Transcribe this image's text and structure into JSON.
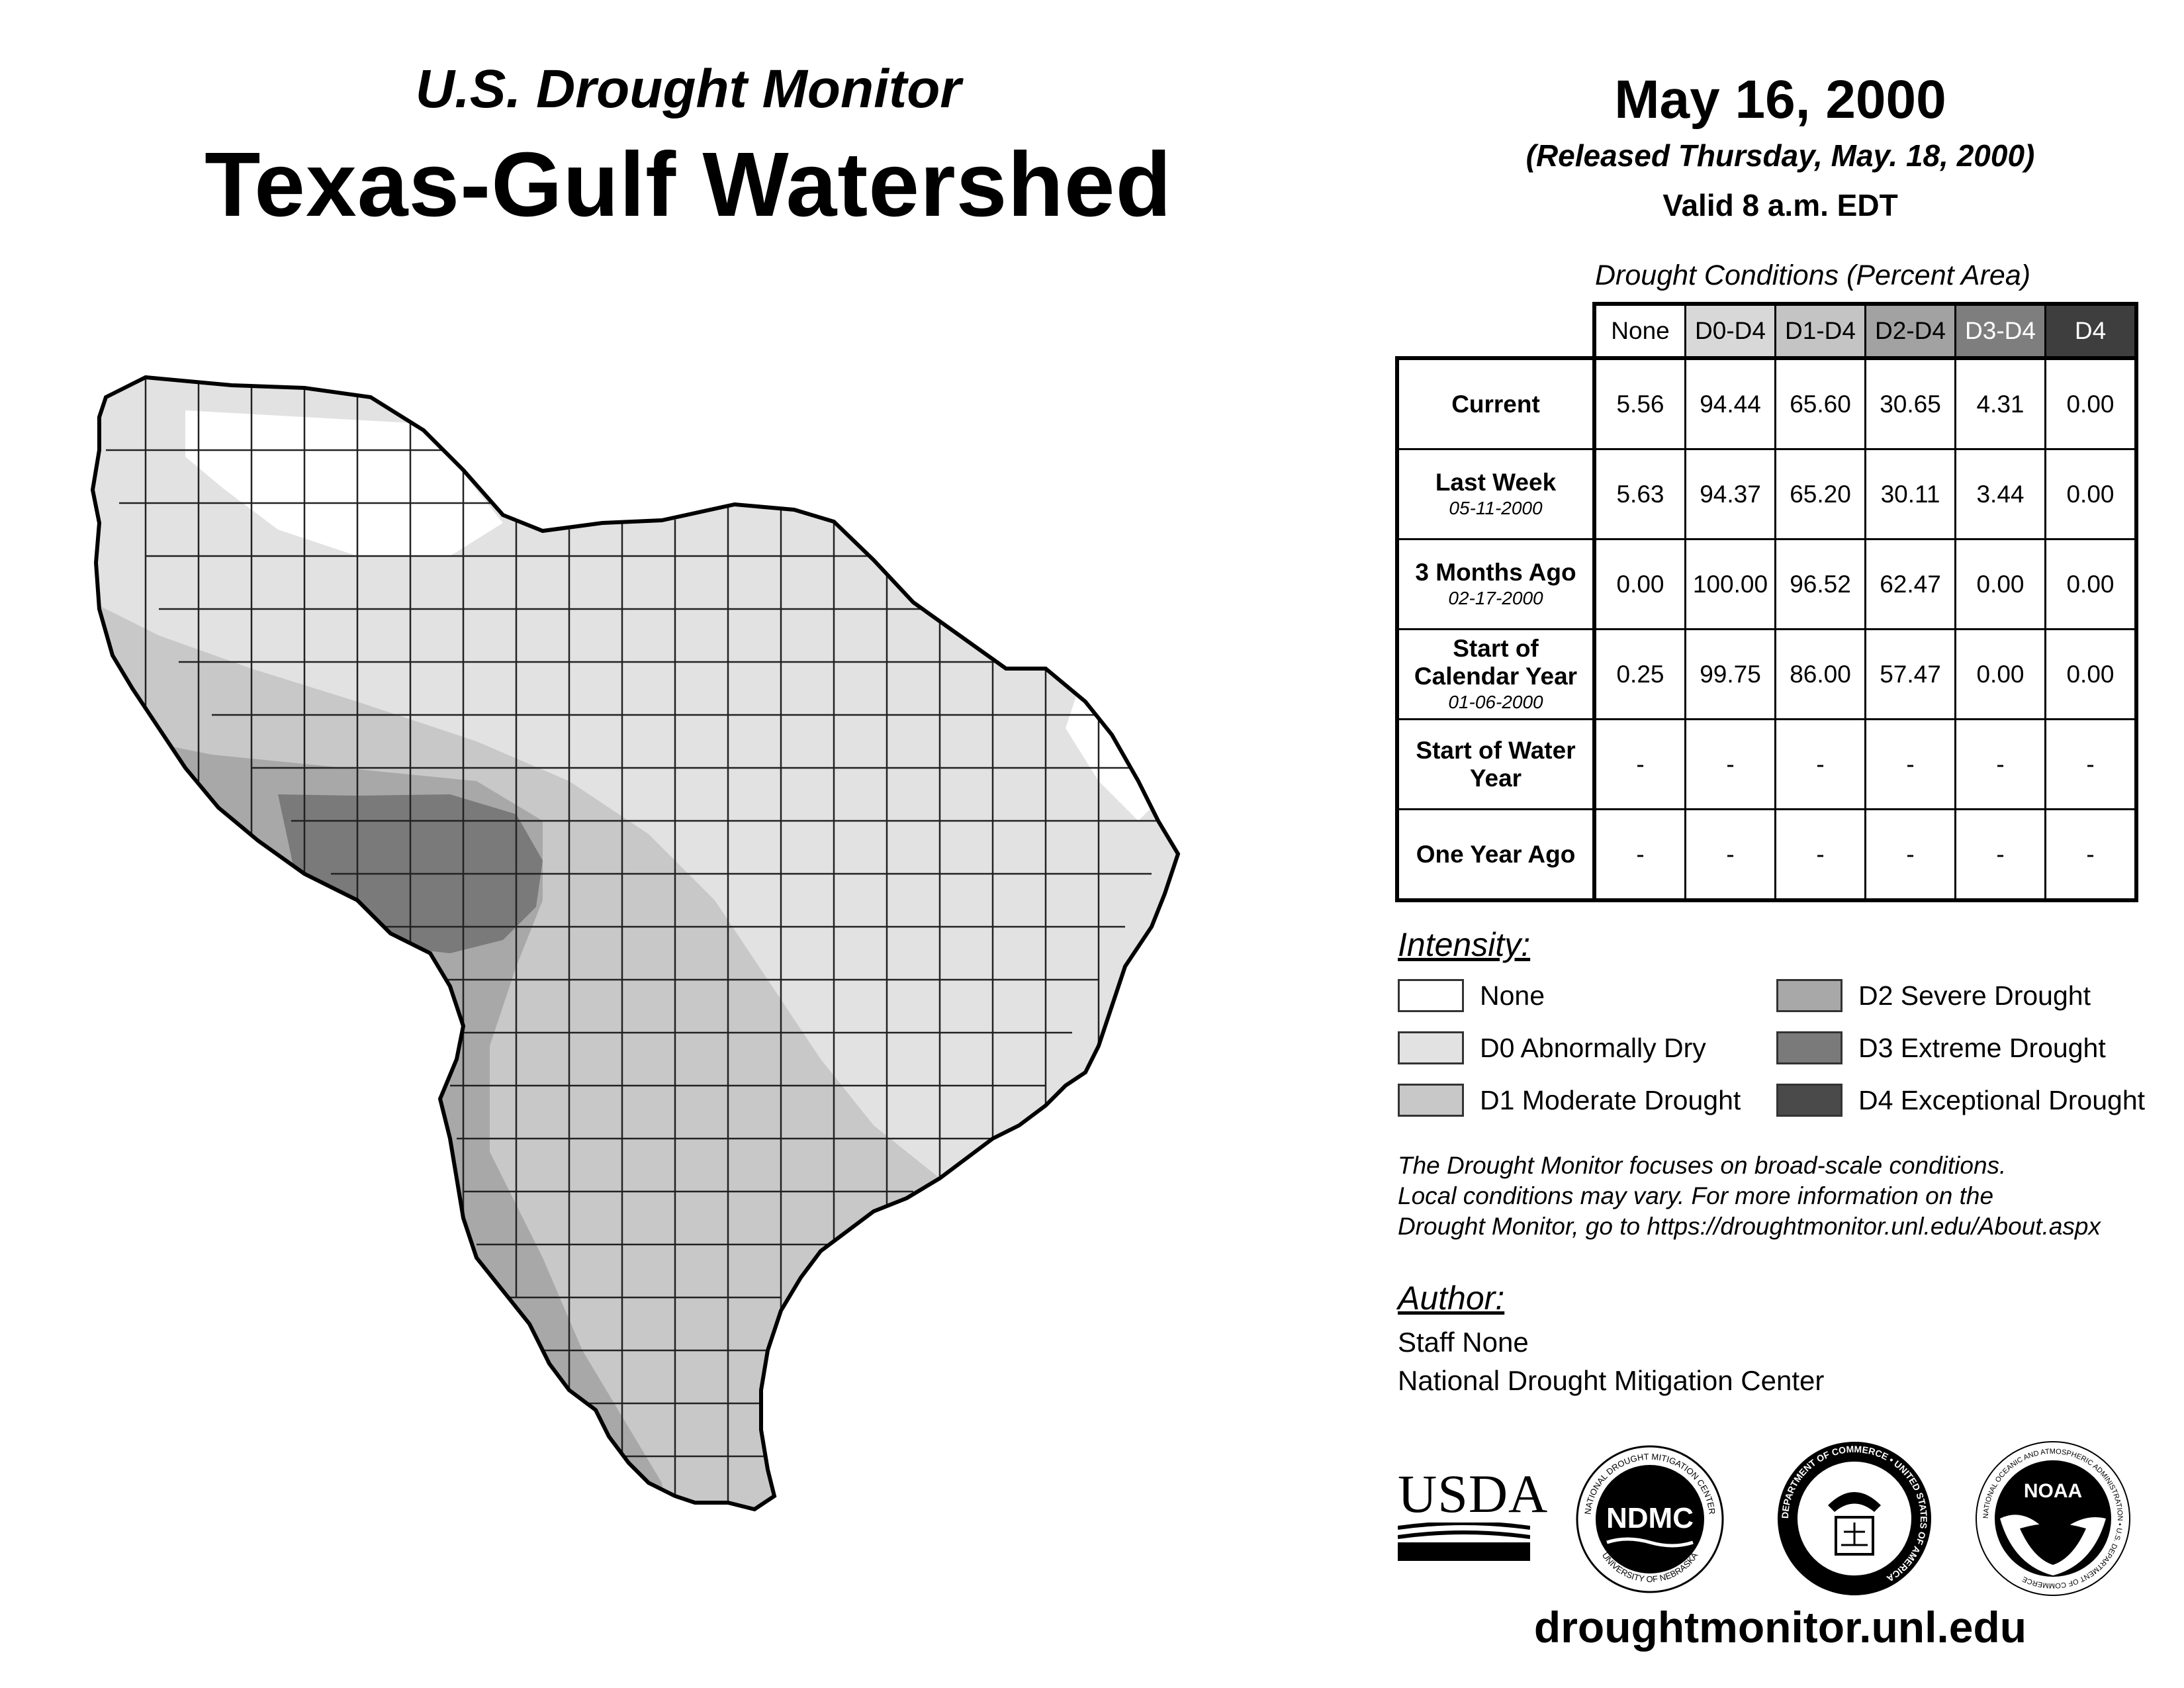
{
  "header": {
    "subtitle": "U.S. Drought Monitor",
    "title": "Texas-Gulf Watershed",
    "date": "May 16, 2000",
    "released": "(Released Thursday, May. 18, 2000)",
    "valid": "Valid 8 a.m. EDT"
  },
  "table": {
    "caption": "Drought Conditions (Percent Area)",
    "columns": [
      "None",
      "D0-D4",
      "D1-D4",
      "D2-D4",
      "D3-D4",
      "D4"
    ],
    "rows": [
      {
        "label": "Current",
        "date": "",
        "values": [
          "5.56",
          "94.44",
          "65.60",
          "30.65",
          "4.31",
          "0.00"
        ]
      },
      {
        "label": "Last Week",
        "date": "05-11-2000",
        "values": [
          "5.63",
          "94.37",
          "65.20",
          "30.11",
          "3.44",
          "0.00"
        ]
      },
      {
        "label": "3 Months Ago",
        "date": "02-17-2000",
        "values": [
          "0.00",
          "100.00",
          "96.52",
          "62.47",
          "0.00",
          "0.00"
        ]
      },
      {
        "label": "Start of Calendar Year",
        "date": "01-06-2000",
        "values": [
          "0.25",
          "99.75",
          "86.00",
          "57.47",
          "0.00",
          "0.00"
        ]
      },
      {
        "label": "Start of Water Year",
        "date": "",
        "values": [
          "-",
          "-",
          "-",
          "-",
          "-",
          "-"
        ]
      },
      {
        "label": "One Year Ago",
        "date": "",
        "values": [
          "-",
          "-",
          "-",
          "-",
          "-",
          "-"
        ]
      }
    ]
  },
  "legend": {
    "title": "Intensity:",
    "items": [
      {
        "label": "None",
        "color": "#ffffff"
      },
      {
        "label": "D0 Abnormally Dry",
        "color": "#e2e2e2"
      },
      {
        "label": "D1 Moderate Drought",
        "color": "#c8c8c8"
      },
      {
        "label": "D2 Severe Drought",
        "color": "#a8a8a8"
      },
      {
        "label": "D3 Extreme Drought",
        "color": "#7a7a7a"
      },
      {
        "label": "D4 Exceptional Drought",
        "color": "#4a4a4a"
      }
    ]
  },
  "note": {
    "line1": "The Drought Monitor focuses on broad-scale conditions.",
    "line2": "Local conditions may vary. For more information on the",
    "line3": "Drought Monitor, go to https://droughtmonitor.unl.edu/About.aspx"
  },
  "author": {
    "title": "Author:",
    "name": "Staff None",
    "org": "National Drought Mitigation Center"
  },
  "logos": {
    "usda": "USDA",
    "ndmc": "NDMC",
    "ndmc_ring_top": "NATIONAL DROUGHT MITIGATION CENTER",
    "ndmc_ring_bottom": "UNIVERSITY OF NEBRASKA",
    "doc_ring": "DEPARTMENT OF COMMERCE • UNITED STATES OF AMERICA",
    "noaa": "NOAA",
    "noaa_ring": "NATIONAL OCEANIC AND ATMOSPHERIC ADMINISTRATION • U.S. DEPARTMENT OF COMMERCE"
  },
  "site": "droughtmonitor.unl.edu"
}
